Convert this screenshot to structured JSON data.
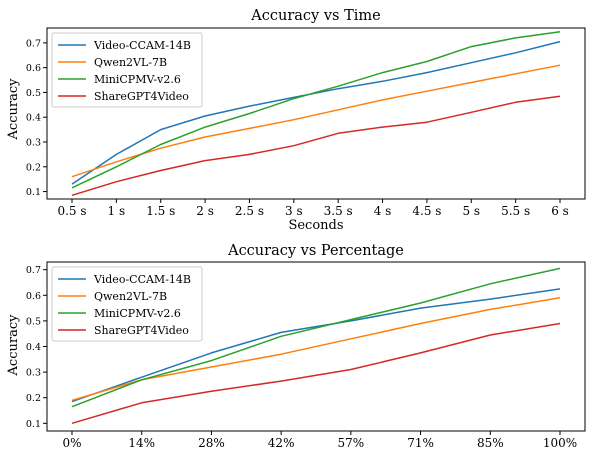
{
  "colors": {
    "Video-CCAM-14B": "#1f77b4",
    "Qwen2VL-7B": "#ff7f0e",
    "MiniCPMV-v2.6": "#2ca02c",
    "ShareGPT4Video": "#d62728"
  },
  "chart_data": [
    {
      "type": "line",
      "title": "Accuracy vs Time",
      "xlabel": "Seconds",
      "ylabel": "Accuracy",
      "x": [
        "0.5 s",
        "1 s",
        "1.5 s",
        "2 s",
        "2.5 s",
        "3 s",
        "3.5 s",
        "4 s",
        "4.5 s",
        "5 s",
        "5.5 s",
        "6 s"
      ],
      "ylim": [
        0.07,
        0.76
      ],
      "yticks": [
        0.1,
        0.2,
        0.3,
        0.4,
        0.5,
        0.6,
        0.7
      ],
      "legend": "top-left",
      "grid": false,
      "series": [
        {
          "name": "Video-CCAM-14B",
          "values": [
            0.13,
            0.25,
            0.35,
            0.405,
            0.445,
            0.48,
            0.515,
            0.545,
            0.58,
            0.62,
            0.66,
            0.705
          ]
        },
        {
          "name": "Qwen2VL-7B",
          "values": [
            0.16,
            0.22,
            0.275,
            0.32,
            0.355,
            0.39,
            0.43,
            0.47,
            0.505,
            0.54,
            0.575,
            0.61
          ]
        },
        {
          "name": "MiniCPMV-v2.6",
          "values": [
            0.115,
            0.2,
            0.29,
            0.36,
            0.415,
            0.475,
            0.525,
            0.58,
            0.625,
            0.685,
            0.72,
            0.745
          ]
        },
        {
          "name": "ShareGPT4Video",
          "values": [
            0.085,
            0.14,
            0.185,
            0.225,
            0.25,
            0.285,
            0.335,
            0.36,
            0.38,
            0.42,
            0.46,
            0.485
          ]
        }
      ]
    },
    {
      "type": "line",
      "title": "Accuracy vs Percentage",
      "xlabel": "",
      "ylabel": "Accuracy",
      "x": [
        "0%",
        "14%",
        "28%",
        "42%",
        "57%",
        "71%",
        "85%",
        "100%"
      ],
      "ylim": [
        0.07,
        0.73
      ],
      "yticks": [
        0.1,
        0.2,
        0.3,
        0.4,
        0.5,
        0.6,
        0.7
      ],
      "legend": "top-left",
      "grid": false,
      "series": [
        {
          "name": "Video-CCAM-14B",
          "values": [
            0.185,
            0.28,
            0.375,
            0.455,
            0.5,
            0.55,
            0.585,
            0.625
          ]
        },
        {
          "name": "Qwen2VL-7B",
          "values": [
            0.19,
            0.27,
            0.32,
            0.37,
            0.43,
            0.49,
            0.545,
            0.59
          ]
        },
        {
          "name": "MiniCPMV-v2.6",
          "values": [
            0.165,
            0.27,
            0.345,
            0.44,
            0.505,
            0.57,
            0.645,
            0.705
          ]
        },
        {
          "name": "ShareGPT4Video",
          "values": [
            0.1,
            0.18,
            0.225,
            0.265,
            0.31,
            0.375,
            0.445,
            0.49
          ]
        }
      ]
    }
  ]
}
